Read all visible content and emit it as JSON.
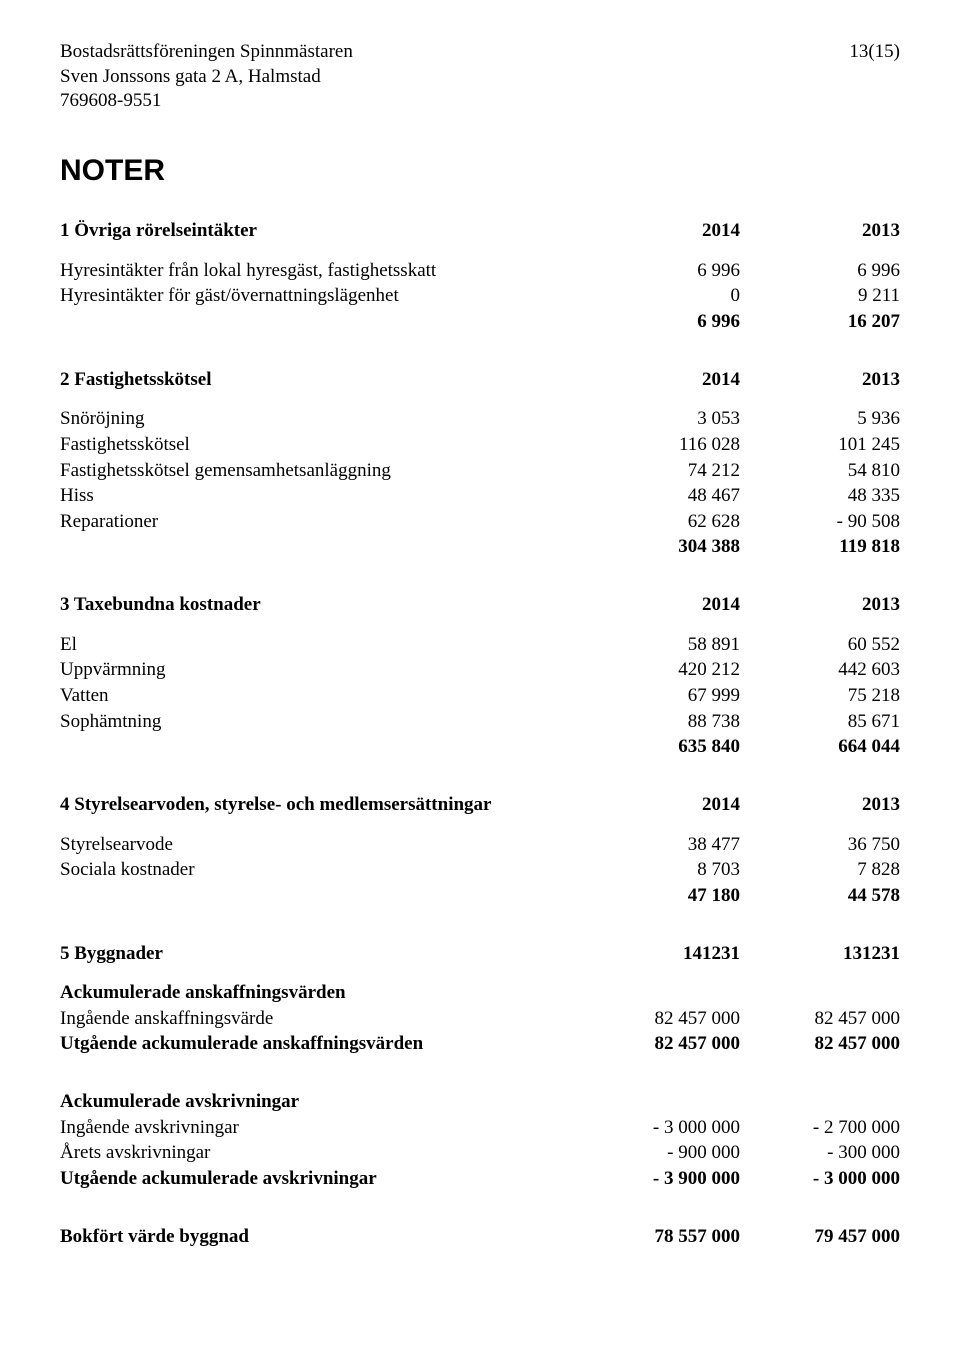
{
  "header": {
    "org_name": "Bostadsrättsföreningen Spinnmästaren",
    "address": "Sven Jonssons gata 2 A, Halmstad",
    "org_number": "769608-9551",
    "page_indicator": "13(15)"
  },
  "title": "NOTER",
  "sections": [
    {
      "heading": {
        "label": "1 Övriga rörelseintäkter",
        "col1": "2014",
        "col2": "2013",
        "bold": true
      },
      "rows": [
        {
          "label": "Hyresintäkter från lokal hyresgäst, fastighetsskatt",
          "col1": "6 996",
          "col2": "6 996"
        },
        {
          "label": "Hyresintäkter för gäst/övernattningslägenhet",
          "col1": "0",
          "col2": "9 211"
        },
        {
          "label": "",
          "col1": "6 996",
          "col2": "16 207",
          "bold": true
        }
      ]
    },
    {
      "heading": {
        "label": "2 Fastighetsskötsel",
        "col1": "2014",
        "col2": "2013",
        "bold": true
      },
      "rows": [
        {
          "label": "Snöröjning",
          "col1": "3 053",
          "col2": "5 936"
        },
        {
          "label": "Fastighetsskötsel",
          "col1": "116 028",
          "col2": "101 245"
        },
        {
          "label": "Fastighetsskötsel gemensamhetsanläggning",
          "col1": "74 212",
          "col2": "54 810"
        },
        {
          "label": "Hiss",
          "col1": "48 467",
          "col2": "48 335"
        },
        {
          "label": "Reparationer",
          "col1": "62 628",
          "col2": "- 90 508"
        },
        {
          "label": "",
          "col1": "304 388",
          "col2": "119 818",
          "bold": true
        }
      ]
    },
    {
      "heading": {
        "label": "3 Taxebundna kostnader",
        "col1": "2014",
        "col2": "2013",
        "bold": true
      },
      "rows": [
        {
          "label": "El",
          "col1": "58 891",
          "col2": "60 552"
        },
        {
          "label": "Uppvärmning",
          "col1": "420 212",
          "col2": "442 603"
        },
        {
          "label": "Vatten",
          "col1": "67 999",
          "col2": "75 218"
        },
        {
          "label": "Sophämtning",
          "col1": "88 738",
          "col2": "85 671"
        },
        {
          "label": "",
          "col1": "635 840",
          "col2": "664 044",
          "bold": true
        }
      ]
    },
    {
      "heading": {
        "label": "4 Styrelsearvoden, styrelse- och medlemsersättningar",
        "col1": "2014",
        "col2": "2013",
        "bold": true
      },
      "rows": [
        {
          "label": "Styrelsearvode",
          "col1": "38 477",
          "col2": "36 750"
        },
        {
          "label": "Sociala kostnader",
          "col1": "8 703",
          "col2": "7 828"
        },
        {
          "label": "",
          "col1": "47 180",
          "col2": "44 578",
          "bold": true
        }
      ]
    },
    {
      "heading": {
        "label": "5 Byggnader",
        "col1": "141231",
        "col2": "131231",
        "bold": true
      },
      "rows": [
        {
          "label": "Ackumulerade anskaffningsvärden",
          "col1": "",
          "col2": "",
          "bold": true
        },
        {
          "label": "Ingående anskaffningsvärde",
          "col1": "82 457 000",
          "col2": "82 457 000"
        },
        {
          "label": "Utgående ackumulerade anskaffningsvärden",
          "col1": "82 457 000",
          "col2": "82 457 000",
          "bold": true
        }
      ]
    },
    {
      "heading": null,
      "rows": [
        {
          "label": "Ackumulerade avskrivningar",
          "col1": "",
          "col2": "",
          "bold": true
        },
        {
          "label": "Ingående avskrivningar",
          "col1": "- 3 000 000",
          "col2": "- 2 700 000"
        },
        {
          "label": "Årets avskrivningar",
          "col1": "- 900 000",
          "col2": "- 300 000"
        },
        {
          "label": "Utgående ackumulerade avskrivningar",
          "col1": "- 3 900 000",
          "col2": "- 3 000 000",
          "bold": true
        }
      ]
    },
    {
      "heading": null,
      "rows": [
        {
          "label": "Bokfört värde byggnad",
          "col1": "78 557 000",
          "col2": "79 457 000",
          "bold": true
        }
      ]
    }
  ]
}
